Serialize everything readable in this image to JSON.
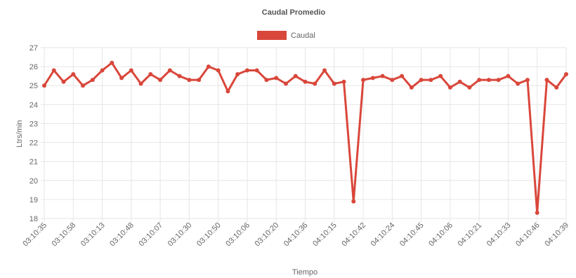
{
  "chart_data": {
    "type": "line",
    "title": "Caudal Promedio",
    "xlabel": "Tiempo",
    "ylabel": "Ltrs/min",
    "ylim": [
      18,
      27
    ],
    "yticks": [
      18,
      19,
      20,
      21,
      22,
      23,
      24,
      25,
      26,
      27
    ],
    "grid": true,
    "legend_position": "top-center",
    "x_tick_labels": [
      "03:10:35",
      "03:10:58",
      "03:10:13",
      "03:10:48",
      "03:10:07",
      "03:10:30",
      "03:10:50",
      "03:10:06",
      "03:10:20",
      "04:10:36",
      "04:10:15",
      "04:10:42",
      "04:10:24",
      "04:10:45",
      "04:10:06",
      "04:10:21",
      "04:10:33",
      "04:10:46",
      "04:10:39"
    ],
    "series": [
      {
        "name": "Caudal",
        "color": "#d9473b",
        "values": [
          25.0,
          25.8,
          25.2,
          25.6,
          25.0,
          25.3,
          25.8,
          26.2,
          25.4,
          25.8,
          25.1,
          25.6,
          25.3,
          25.8,
          25.5,
          25.3,
          25.3,
          26.0,
          25.8,
          24.7,
          25.6,
          25.8,
          25.8,
          25.3,
          25.4,
          25.1,
          25.5,
          25.2,
          25.1,
          25.8,
          25.1,
          25.2,
          18.9,
          25.3,
          25.4,
          25.5,
          25.3,
          25.5,
          24.9,
          25.3,
          25.3,
          25.5,
          24.9,
          25.2,
          24.9,
          25.3,
          25.3,
          25.3,
          25.5,
          25.1,
          25.3,
          18.3,
          25.3,
          24.9,
          25.6
        ]
      }
    ]
  }
}
